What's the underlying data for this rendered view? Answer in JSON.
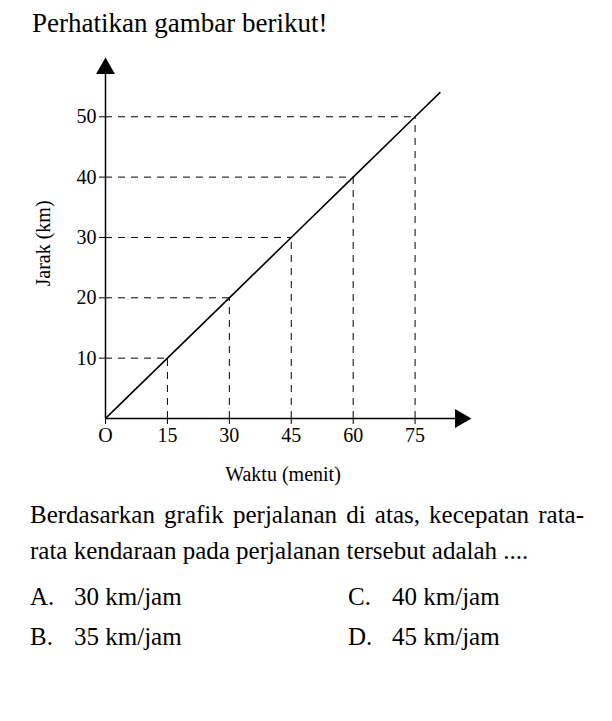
{
  "title": "Perhatikan gambar berikut!",
  "chart_data": {
    "type": "line",
    "x_label": "Waktu (menit)",
    "y_label": "Jarak (km)",
    "x": [
      0,
      15,
      30,
      45,
      60,
      75,
      81
    ],
    "values": [
      0,
      10,
      20,
      30,
      40,
      50,
      54
    ],
    "color": "#000000",
    "line_style": "solid",
    "xlim": [
      0,
      86
    ],
    "ylim": [
      0,
      58
    ],
    "xticks": [
      {
        "value": 0,
        "label": "O"
      },
      15,
      30,
      45,
      60,
      75
    ],
    "yticks": [
      10,
      20,
      30,
      40,
      50
    ]
  },
  "question": "Berdasarkan grafik perjalanan di atas, kecepatan rata-rata kendaraan pada perjalanan tersebut adalah ....",
  "options": [
    {
      "letter": "A.",
      "text": "30 km/jam"
    },
    {
      "letter": "B.",
      "text": "35 km/jam"
    },
    {
      "letter": "C.",
      "text": "40 km/jam"
    },
    {
      "letter": "D.",
      "text": "45 km/jam"
    }
  ]
}
